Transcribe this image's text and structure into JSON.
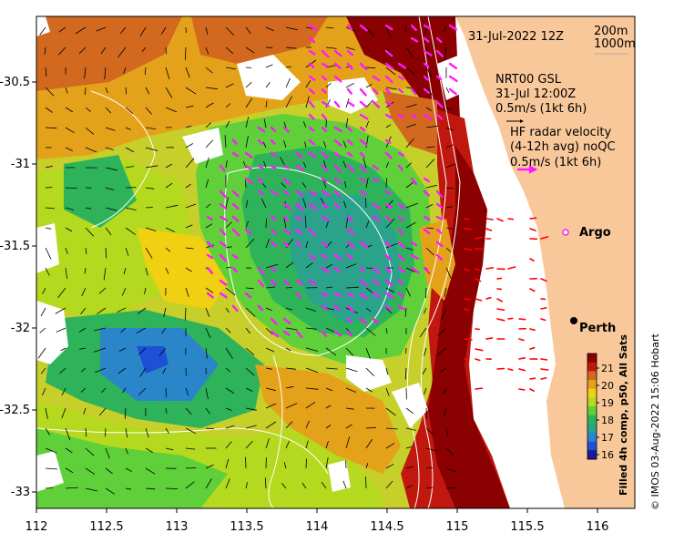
{
  "header": {
    "timestamp": "31-Jul-2022 12Z",
    "depth_contour_1": "200m",
    "depth_contour_2": "1000m"
  },
  "legend": {
    "model_title": "NRT00 GSL",
    "model_time": "31-Jul 12:00Z",
    "model_scale": "0.5m/s (1kt 6h)",
    "radar_line1": "HF radar velocity",
    "radar_line2": "(4-12h avg) noQC",
    "radar_scale": "0.5m/s (1kt 6h)",
    "argo_label": "Argo"
  },
  "places": {
    "city": "Perth"
  },
  "axes": {
    "x_ticks": [
      "112",
      "112.5",
      "113",
      "113.5",
      "114",
      "114.5",
      "115",
      "115.5",
      "116"
    ],
    "y_ticks": [
      "-30.5",
      "-31",
      "-31.5",
      "-32",
      "-32.5",
      "-33"
    ]
  },
  "colorbar": {
    "label": "Filled 4h comp, p50, All Sats",
    "ticks": [
      "21",
      "20",
      "19",
      "18",
      "17",
      "16"
    ],
    "colors": [
      "#8b0000",
      "#c0180e",
      "#d2691e",
      "#e3a21a",
      "#f0d010",
      "#b5d91e",
      "#5fcf3a",
      "#2fb35a",
      "#2aa38a",
      "#2a86c9",
      "#1f4fd6",
      "#1a1a9a"
    ]
  },
  "credit": "© IMOS 03-Aug-2022 15:06 Hobart",
  "colors": {
    "land": "#f9c89a",
    "model_vectors": "#000000",
    "radar_vectors": "#ff1aff",
    "argo": "#ff1aff",
    "argo_fill": "#ffffff",
    "red_vectors": "#ff0000"
  }
}
